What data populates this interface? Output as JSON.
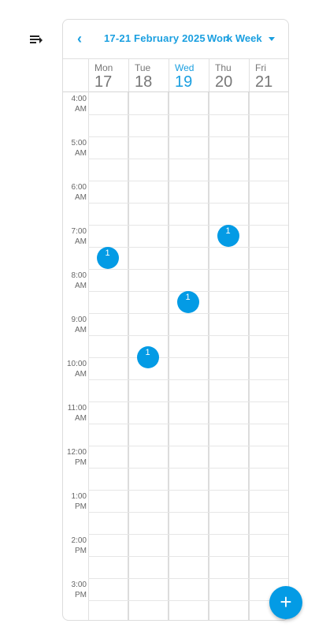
{
  "toolbar": {
    "range_label": "17-21 February 2025",
    "view_label": "Work Week",
    "prev_icon": "chevron-left-icon",
    "next_icon": "chevron-right-icon"
  },
  "days": [
    {
      "dow": "Mon",
      "dom": "17",
      "today": false
    },
    {
      "dow": "Tue",
      "dom": "18",
      "today": false
    },
    {
      "dow": "Wed",
      "dom": "19",
      "today": true
    },
    {
      "dow": "Thu",
      "dom": "20",
      "today": false
    },
    {
      "dow": "Fri",
      "dom": "21",
      "today": false
    }
  ],
  "time_labels": [
    [
      "4:00",
      "AM"
    ],
    [
      "5:00",
      "AM"
    ],
    [
      "6:00",
      "AM"
    ],
    [
      "7:00",
      "AM"
    ],
    [
      "8:00",
      "AM"
    ],
    [
      "9:00",
      "AM"
    ],
    [
      "10:00",
      "AM"
    ],
    [
      "11:00",
      "AM"
    ],
    [
      "12:00",
      "PM"
    ],
    [
      "1:00",
      "PM"
    ],
    [
      "2:00",
      "PM"
    ],
    [
      "3:00",
      "PM"
    ]
  ],
  "events": [
    {
      "day_index": 0,
      "hour": 7.75,
      "count": "1"
    },
    {
      "day_index": 1,
      "hour": 10.0,
      "count": "1"
    },
    {
      "day_index": 2,
      "hour": 8.75,
      "count": "1"
    },
    {
      "day_index": 3,
      "hour": 7.25,
      "count": "1"
    }
  ],
  "colors": {
    "accent": "#1a9fe0",
    "event": "#039be5"
  },
  "fab": {
    "icon": "plus-icon",
    "label": "+"
  }
}
